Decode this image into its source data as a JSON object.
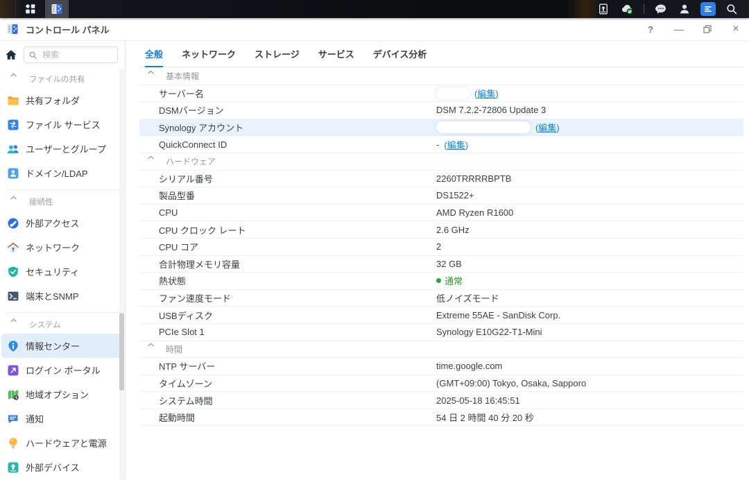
{
  "taskbar": {
    "left": {
      "main_menu_icon": "main-menu-icon",
      "active_app_icon": "control-panel-icon"
    },
    "right_items": [
      {
        "icon": "device-backup-icon"
      },
      {
        "icon": "cloud-sync-icon"
      },
      {
        "divider": true
      },
      {
        "icon": "chat-icon"
      },
      {
        "icon": "user-icon"
      },
      {
        "icon": "widgets-icon",
        "active": true
      },
      {
        "icon": "search-icon"
      }
    ]
  },
  "window": {
    "title": "コントロール パネル",
    "controls": {
      "help": "?",
      "minimize": "—",
      "restore_icon": "restore-icon",
      "close": "×"
    }
  },
  "sidebar": {
    "search": {
      "placeholder": "検索"
    },
    "sections": [
      {
        "label": "ファイルの共有",
        "items": [
          {
            "label": "共有フォルダ",
            "icon": "shared-folder-icon"
          },
          {
            "label": "ファイル サービス",
            "icon": "file-services-icon"
          },
          {
            "label": "ユーザーとグループ",
            "icon": "users-groups-icon"
          },
          {
            "label": "ドメイン/LDAP",
            "icon": "domain-ldap-icon"
          }
        ]
      },
      {
        "label": "接続性",
        "items": [
          {
            "label": "外部アクセス",
            "icon": "external-access-icon"
          },
          {
            "label": "ネットワーク",
            "icon": "network-icon"
          },
          {
            "label": "セキュリティ",
            "icon": "security-icon"
          },
          {
            "label": "端末とSNMP",
            "icon": "terminal-snmp-icon"
          }
        ]
      },
      {
        "label": "システム",
        "items": [
          {
            "label": "情報センター",
            "icon": "info-center-icon",
            "selected": true
          },
          {
            "label": "ログイン ポータル",
            "icon": "login-portal-icon"
          },
          {
            "label": "地域オプション",
            "icon": "regional-options-icon"
          },
          {
            "label": "通知",
            "icon": "notifications-icon"
          },
          {
            "label": "ハードウェアと電源",
            "icon": "hardware-power-icon"
          },
          {
            "label": "外部デバイス",
            "icon": "external-devices-icon"
          }
        ]
      }
    ]
  },
  "tabs": {
    "active_index": 0,
    "items": [
      "全般",
      "ネットワーク",
      "ストレージ",
      "サービス",
      "デバイス分析"
    ]
  },
  "content": {
    "paren_open": "(",
    "paren_close": ")",
    "sections": [
      {
        "title": "基本情報",
        "rows": [
          {
            "label": "サーバー名",
            "value": "",
            "redacted": true,
            "redact_width": 48,
            "edit": "編集"
          },
          {
            "label": "DSMバージョン",
            "value": "DSM 7.2.2-72806 Update 3"
          },
          {
            "label": "Synology アカウント",
            "value": "",
            "redacted": true,
            "redact_width": 136,
            "edit": "編集",
            "highlight": true
          },
          {
            "label": "QuickConnect ID",
            "value": "-",
            "edit": "編集"
          }
        ]
      },
      {
        "title": "ハードウェア",
        "rows": [
          {
            "label": "シリアル番号",
            "value": "2260TRRRRBPTB"
          },
          {
            "label": "製品型番",
            "value": "DS1522+"
          },
          {
            "label": "CPU",
            "value": "AMD Ryzen R1600"
          },
          {
            "label": "CPU クロック レート",
            "value": "2.6 GHz"
          },
          {
            "label": "CPU コア",
            "value": "2"
          },
          {
            "label": "合計物理メモリ容量",
            "value": "32 GB"
          },
          {
            "label": "熱状態",
            "value": "通常",
            "status_dot": "#33a133",
            "value_color": "#2e9b2e"
          },
          {
            "label": "ファン速度モード",
            "value": "低ノイズモード"
          },
          {
            "label": "USBディスク",
            "value": "Extreme 55AE - SanDisk Corp."
          },
          {
            "label": "PCIe Slot 1",
            "value": "Synology E10G22-T1-Mini"
          }
        ]
      },
      {
        "title": "時間",
        "rows": [
          {
            "label": "NTP サーバー",
            "value": "time.google.com"
          },
          {
            "label": "タイムゾーン",
            "value": "(GMT+09:00) Tokyo, Osaka, Sapporo"
          },
          {
            "label": "システム時間",
            "value": "2025-05-18 16:45:51"
          },
          {
            "label": "起動時間",
            "value": "54 日 2 時間 40 分 20 秒"
          }
        ]
      }
    ]
  },
  "colors": {
    "accent": "#1a7fd4",
    "link": "#1186d2",
    "status_green": "#2e9b2e",
    "row_highlight": "#e9f3fd",
    "sidebar_selected": "#e2eefa",
    "badge_green": "#35b44a"
  }
}
